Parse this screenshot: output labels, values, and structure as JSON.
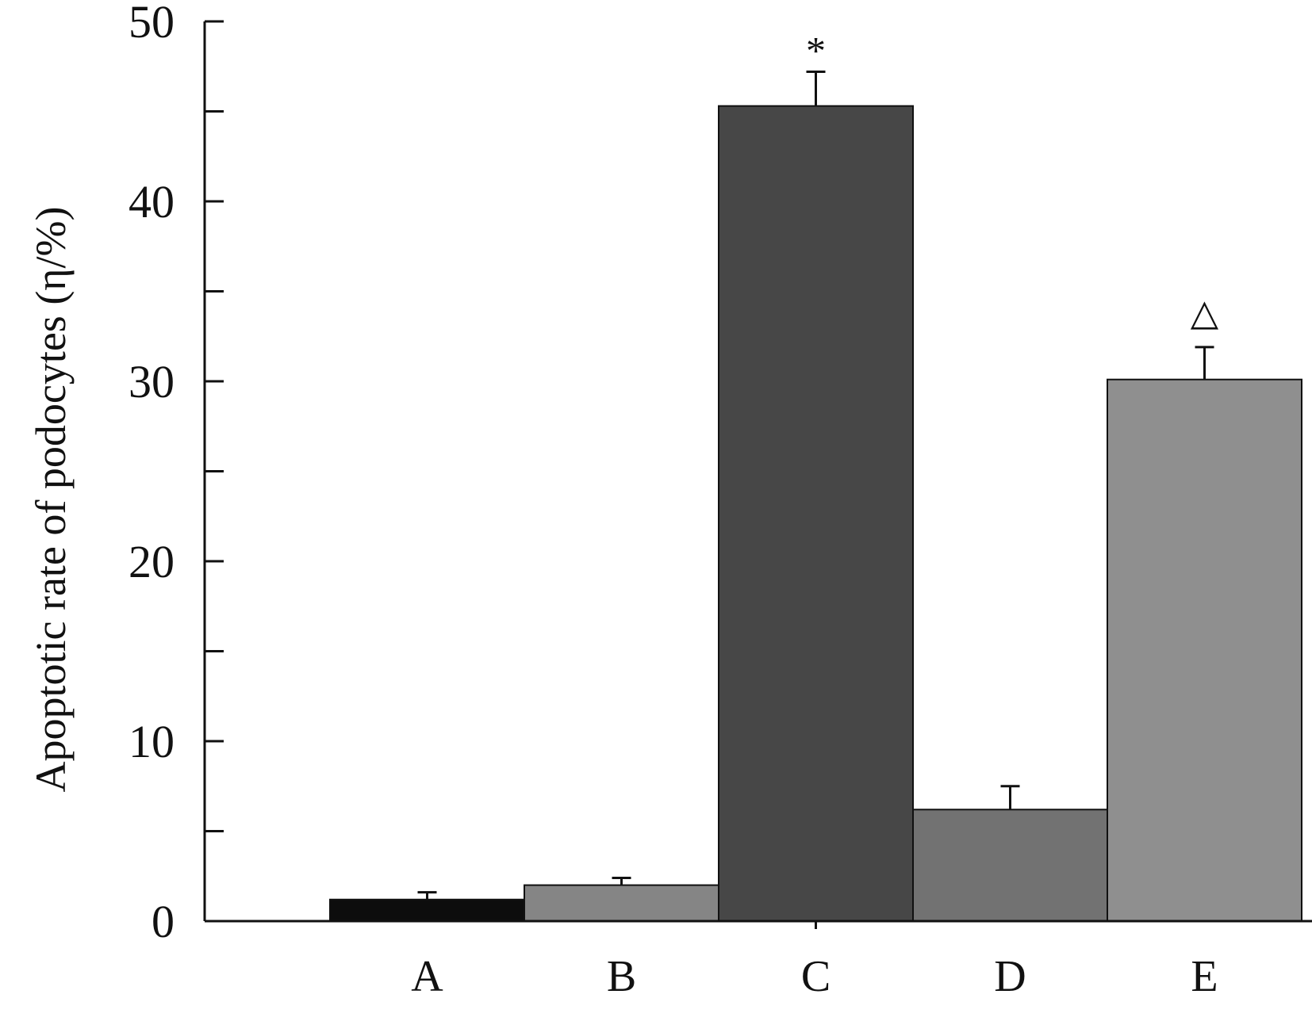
{
  "chart_data": {
    "type": "bar",
    "categories": [
      "A",
      "B",
      "C",
      "D",
      "E"
    ],
    "values": [
      1.2,
      2.0,
      45.3,
      6.2,
      30.1
    ],
    "errors": [
      0.4,
      0.4,
      1.9,
      1.3,
      1.8
    ],
    "colors": [
      "#0d0d0d",
      "#858585",
      "#474747",
      "#727272",
      "#8f8f8f"
    ],
    "annotations": [
      "",
      "",
      "*",
      "",
      "△"
    ],
    "ylabel": "Apoptotic rate of podocytes (η/%)",
    "ylim": [
      0,
      50
    ],
    "yticks": [
      0,
      10,
      20,
      30,
      40,
      50
    ],
    "grid": false
  }
}
